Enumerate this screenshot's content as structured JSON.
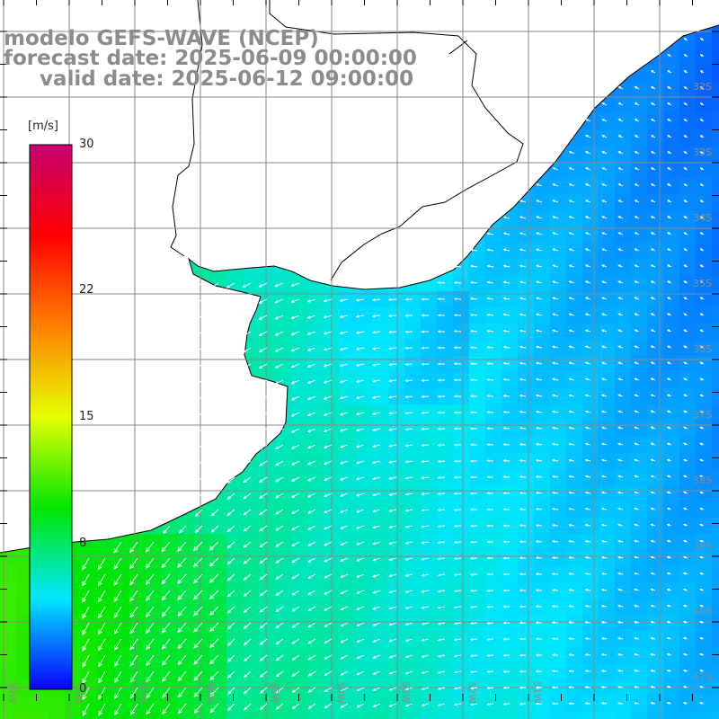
{
  "title": {
    "model": "modelo GEFS-WAVE (NCEP)",
    "forecast": "forecast date: 2025-06-09 00:00:00",
    "valid": "valid date: 2025-06-12 09:00:00"
  },
  "colorbar": {
    "unit": "[m/s]",
    "ticks": [
      {
        "label": "30",
        "value": 30
      },
      {
        "label": "22",
        "value": 22
      },
      {
        "label": "15",
        "value": 15
      },
      {
        "label": "8",
        "value": 8
      },
      {
        "label": "0",
        "value": 0
      }
    ],
    "stops": [
      "#0a00ff",
      "#00e6ff",
      "#00e600",
      "#e6ff00",
      "#ff8000",
      "#ff0000",
      "#c8006e"
    ]
  },
  "map": {
    "latitude_labels": [
      "32S",
      "33S",
      "34S",
      "35S",
      "36S",
      "37S",
      "38S",
      "39S",
      "40S",
      "41S"
    ],
    "longitude_labels": [
      "59W",
      "58W",
      "57W",
      "56W",
      "55W",
      "54W",
      "53W",
      "52W",
      "51W"
    ],
    "colors": {
      "land": "#ffffff",
      "coast": "#000000",
      "grid": "#8a8a8a",
      "arrow": "#ffffff"
    }
  }
}
